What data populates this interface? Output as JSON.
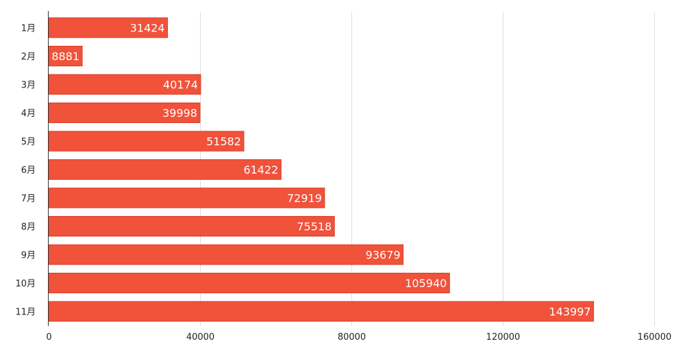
{
  "chart_data": {
    "type": "bar",
    "orientation": "horizontal",
    "title": "",
    "xlabel": "",
    "ylabel": "",
    "categories": [
      "1月",
      "2月",
      "3月",
      "4月",
      "5月",
      "6月",
      "7月",
      "8月",
      "9月",
      "10月",
      "11月"
    ],
    "values": [
      31424,
      8881,
      40174,
      39998,
      51582,
      61422,
      72919,
      75518,
      93679,
      105940,
      143997
    ],
    "xlim": [
      0,
      160000
    ],
    "xticks": [
      0,
      40000,
      80000,
      120000,
      160000
    ],
    "xtick_labels": [
      "0",
      "40000",
      "80000",
      "120000",
      "160000"
    ],
    "grid": "vertical",
    "legend": "none",
    "data_labels": "inside-end",
    "bar_color": "#f0523a",
    "bar_edge_color": "#d8402a",
    "label_color": "#ffffff"
  }
}
